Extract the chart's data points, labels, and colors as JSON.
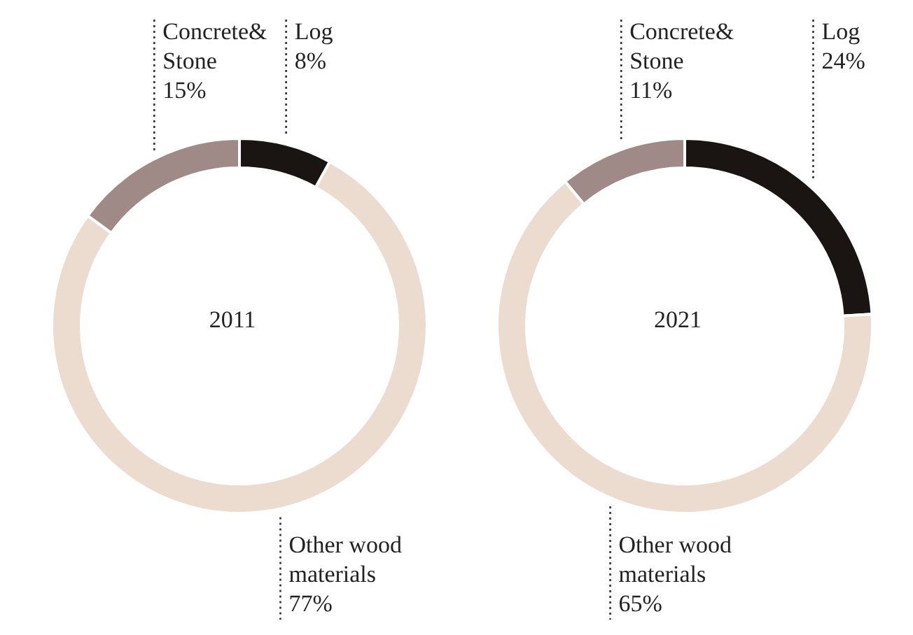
{
  "chart_data": [
    {
      "type": "donut",
      "title": "2011",
      "categories": [
        "Log",
        "Other wood materials",
        "Concrete& Stone"
      ],
      "values": [
        8,
        77,
        15
      ],
      "colors": [
        "#1a1512",
        "#ecdcd0",
        "#a08a88"
      ],
      "value_labels": [
        "8%",
        "77%",
        "15%"
      ]
    },
    {
      "type": "donut",
      "title": "2021",
      "categories": [
        "Log",
        "Other wood materials",
        "Concrete& Stone"
      ],
      "values": [
        24,
        65,
        11
      ],
      "colors": [
        "#1a1512",
        "#ecdcd0",
        "#a08a88"
      ],
      "value_labels": [
        "24%",
        "65%",
        "11%"
      ]
    }
  ]
}
